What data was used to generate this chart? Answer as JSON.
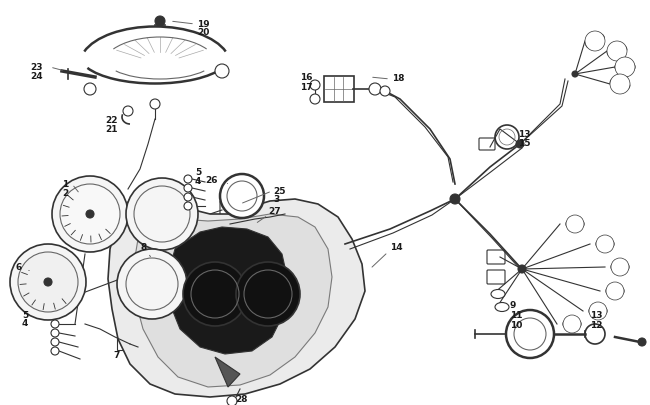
{
  "bg_color": "#ffffff",
  "lc": "#1a1a1a",
  "gc": "#666666",
  "dgc": "#333333",
  "lgc": "#aaaaaa",
  "fig_width": 6.5,
  "fig_height": 4.06,
  "dpi": 100
}
